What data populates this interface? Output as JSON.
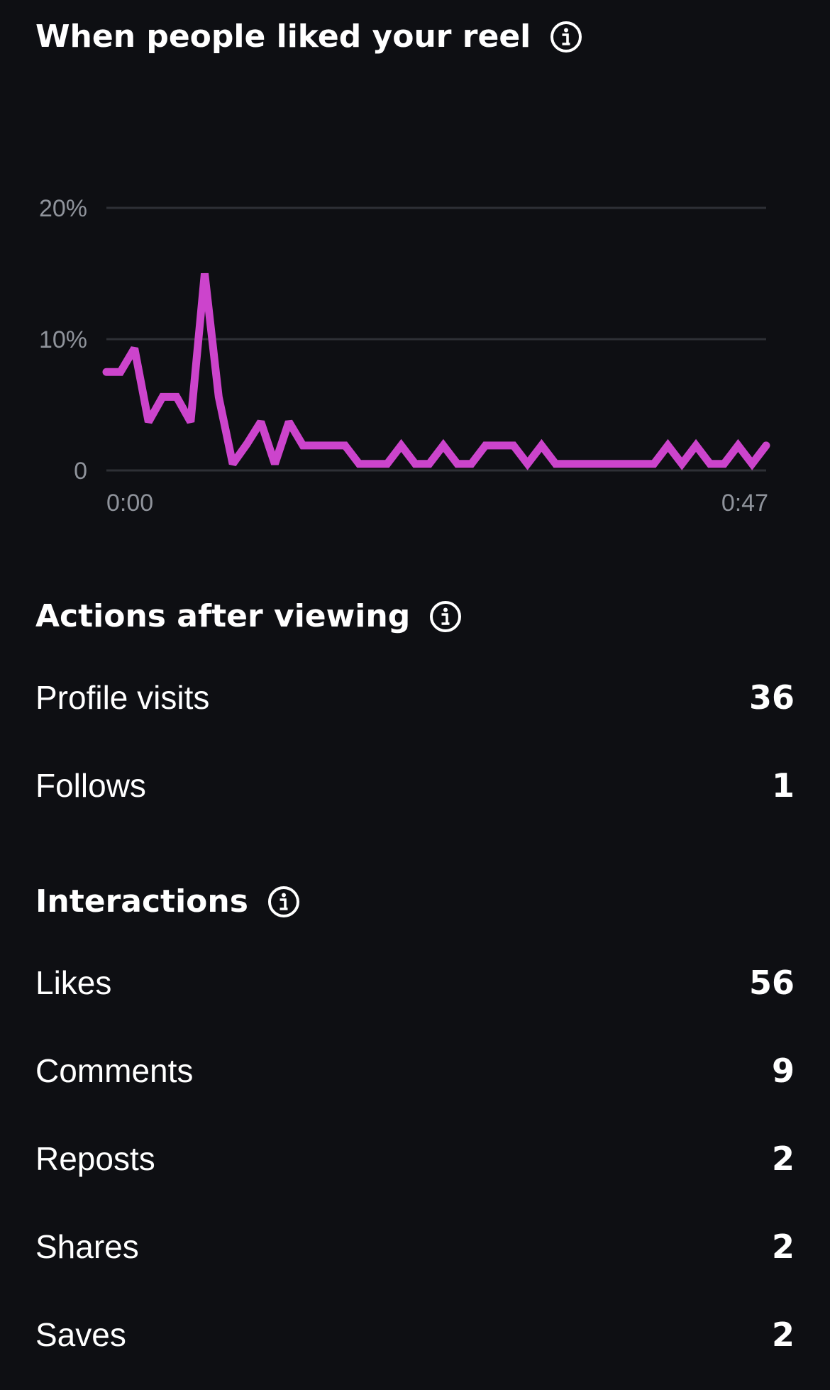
{
  "liked_section": {
    "title": "When people liked your reel",
    "icon": "info-icon"
  },
  "chart_data": {
    "type": "line",
    "title": "",
    "xlabel": "",
    "ylabel": "",
    "x_tick_labels": [
      "0:00",
      "0:47"
    ],
    "y_tick_labels": [
      "20%",
      "10%",
      "0"
    ],
    "ylim": [
      0,
      20
    ],
    "xlim": [
      0,
      47
    ],
    "grid": true,
    "line_color": "#cc44cc",
    "series": [
      {
        "x": [
          0,
          1,
          2,
          3,
          4,
          5,
          6,
          7,
          8,
          9,
          10,
          11,
          12,
          13,
          14,
          15,
          16,
          17,
          18,
          19,
          20,
          21,
          22,
          23,
          24,
          25,
          26,
          27,
          28,
          29,
          30,
          31,
          32,
          33,
          34,
          35,
          36,
          37,
          38,
          39,
          40,
          41,
          42,
          43,
          44,
          45,
          46,
          47
        ],
        "values": [
          7.5,
          7.5,
          9.3,
          3.7,
          5.6,
          5.6,
          3.7,
          15.0,
          5.6,
          0.5,
          2.0,
          3.7,
          0.5,
          3.7,
          1.9,
          1.9,
          1.9,
          1.9,
          0.5,
          0.5,
          0.5,
          1.9,
          0.5,
          0.5,
          1.9,
          0.5,
          0.5,
          1.9,
          1.9,
          1.9,
          0.5,
          1.9,
          0.5,
          0.5,
          0.5,
          0.5,
          0.5,
          0.5,
          0.5,
          0.5,
          1.9,
          0.5,
          1.9,
          0.5,
          0.5,
          1.9,
          0.5,
          1.9
        ]
      }
    ]
  },
  "actions_section": {
    "title": "Actions after viewing",
    "icon": "info-icon",
    "rows": [
      {
        "label": "Profile visits",
        "value": "36"
      },
      {
        "label": "Follows",
        "value": "1"
      }
    ]
  },
  "interactions_section": {
    "title": "Interactions",
    "icon": "info-icon",
    "rows": [
      {
        "label": "Likes",
        "value": "56"
      },
      {
        "label": "Comments",
        "value": "9"
      },
      {
        "label": "Reposts",
        "value": "2"
      },
      {
        "label": "Shares",
        "value": "2"
      },
      {
        "label": "Saves",
        "value": "2"
      }
    ]
  }
}
